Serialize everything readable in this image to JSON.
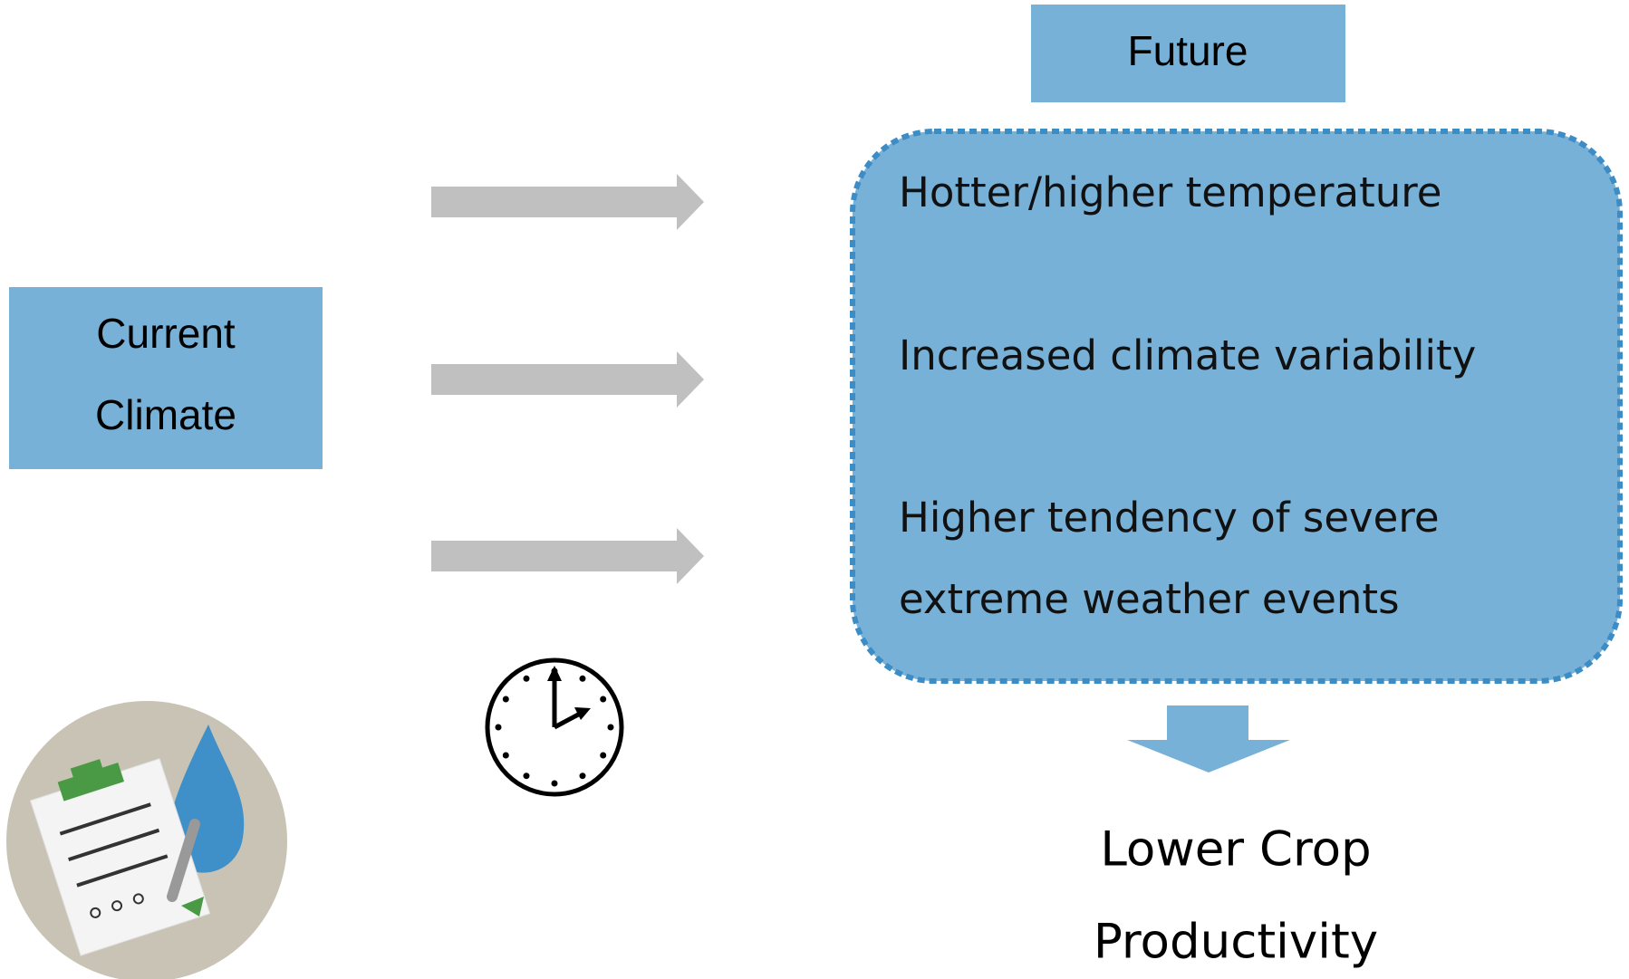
{
  "future": {
    "label": "Future"
  },
  "current": {
    "lines": [
      "Current",
      "Climate"
    ]
  },
  "effects": [
    {
      "lines": [
        "Hotter/higher temperature"
      ]
    },
    {
      "lines": [
        "Increased climate variability"
      ]
    },
    {
      "lines": [
        "Higher tendency of severe",
        "extreme weather events"
      ]
    }
  ],
  "result": {
    "lines": [
      "Lower Crop",
      "Productivity"
    ]
  }
}
